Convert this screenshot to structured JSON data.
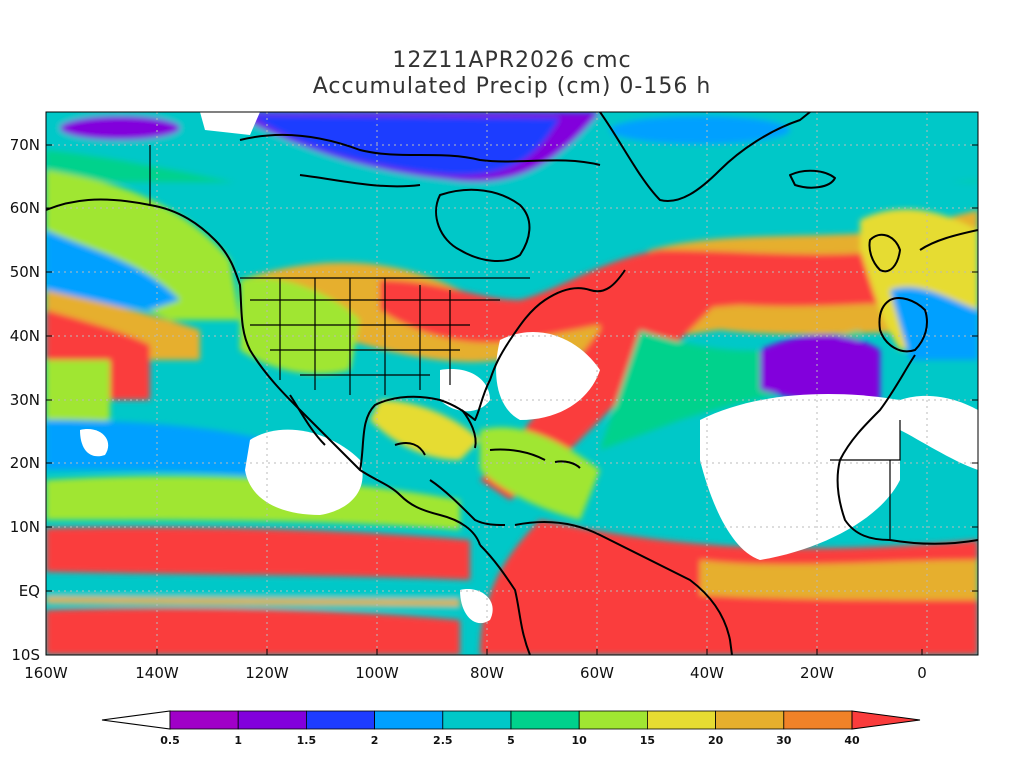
{
  "title_line1": "12Z11APR2026 cmc",
  "title_line2": "Accumulated Precip (cm) 0-156 h",
  "lat_ticks": [
    "70N",
    "60N",
    "50N",
    "40N",
    "30N",
    "20N",
    "10N",
    "EQ",
    "10S"
  ],
  "lon_ticks": [
    "160W",
    "140W",
    "120W",
    "100W",
    "80W",
    "60W",
    "40W",
    "20W",
    "0"
  ],
  "colorbar": {
    "levels": [
      "0.5",
      "1",
      "1.5",
      "2",
      "2.5",
      "5",
      "10",
      "15",
      "20",
      "30",
      "40"
    ],
    "colors": [
      "#ffffff",
      "#a000c8",
      "#8200dc",
      "#1e3cff",
      "#00a0ff",
      "#00c8c8",
      "#00d28c",
      "#a0e632",
      "#e6dc32",
      "#e6af2d",
      "#f08228",
      "#fa3c3c"
    ]
  },
  "colors": {
    "coast": "#000000",
    "grid": "#bbbbbb",
    "dry": "#ffffff"
  }
}
